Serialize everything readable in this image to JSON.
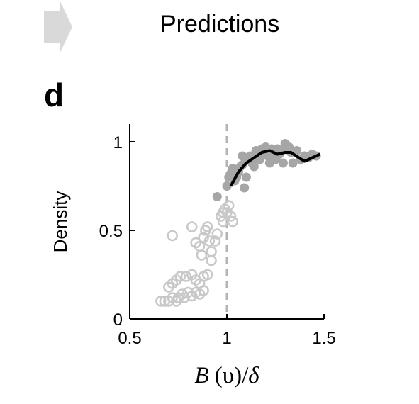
{
  "header": {
    "title": "Predictions",
    "arrow_icon": "right-arrow-icon"
  },
  "panel": {
    "label": "d"
  },
  "colors": {
    "open_marker": "#c8c8c8",
    "filled_marker": "#a6a6a6",
    "line": "#000000",
    "threshold": "#b3b3b3",
    "arrow": "#d9d9d9"
  },
  "chart_data": {
    "type": "scatter",
    "xlabel": {
      "italic": "B",
      "mid": " (υ)/",
      "end": "δ"
    },
    "ylabel": "Density",
    "xlim": [
      0.5,
      1.5
    ],
    "ylim": [
      0,
      1.08
    ],
    "xticks": [
      "0.5",
      "1",
      "1.5"
    ],
    "yticks": [
      "0",
      "0.5",
      "1"
    ],
    "threshold_x": 1,
    "series": [
      {
        "style": "open",
        "points": [
          [
            0.66,
            0.1
          ],
          [
            0.68,
            0.1
          ],
          [
            0.7,
            0.1
          ],
          [
            0.72,
            0.12
          ],
          [
            0.74,
            0.1
          ],
          [
            0.75,
            0.12
          ],
          [
            0.77,
            0.14
          ],
          [
            0.78,
            0.12
          ],
          [
            0.8,
            0.15
          ],
          [
            0.82,
            0.13
          ],
          [
            0.84,
            0.15
          ],
          [
            0.86,
            0.14
          ],
          [
            0.88,
            0.16
          ],
          [
            0.7,
            0.18
          ],
          [
            0.72,
            0.2
          ],
          [
            0.74,
            0.22
          ],
          [
            0.76,
            0.24
          ],
          [
            0.79,
            0.24
          ],
          [
            0.82,
            0.25
          ],
          [
            0.84,
            0.22
          ],
          [
            0.86,
            0.2
          ],
          [
            0.88,
            0.24
          ],
          [
            0.9,
            0.25
          ],
          [
            0.72,
            0.47
          ],
          [
            0.82,
            0.52
          ],
          [
            0.84,
            0.43
          ],
          [
            0.86,
            0.41
          ],
          [
            0.87,
            0.36
          ],
          [
            0.88,
            0.46
          ],
          [
            0.89,
            0.5
          ],
          [
            0.9,
            0.52
          ],
          [
            0.91,
            0.44
          ],
          [
            0.92,
            0.38
          ],
          [
            0.92,
            0.33
          ],
          [
            0.94,
            0.44
          ],
          [
            0.95,
            0.48
          ],
          [
            0.97,
            0.58
          ],
          [
            0.98,
            0.6
          ],
          [
            0.99,
            0.62
          ],
          [
            0.98,
            0.55
          ],
          [
            1.0,
            0.6
          ],
          [
            1.01,
            0.64
          ],
          [
            1.02,
            0.58
          ],
          [
            1.03,
            0.55
          ]
        ]
      },
      {
        "style": "filled",
        "points": [
          [
            0.95,
            0.69
          ],
          [
            1.0,
            0.75
          ],
          [
            1.01,
            0.8
          ],
          [
            1.02,
            0.82
          ],
          [
            1.03,
            0.85
          ],
          [
            1.04,
            0.78
          ],
          [
            1.05,
            0.8
          ],
          [
            1.06,
            0.83
          ],
          [
            1.07,
            0.86
          ],
          [
            1.08,
            0.87
          ],
          [
            1.09,
            0.74
          ],
          [
            1.1,
            0.8
          ],
          [
            1.11,
            0.9
          ],
          [
            1.12,
            0.92
          ],
          [
            1.13,
            0.88
          ],
          [
            1.14,
            0.86
          ],
          [
            1.15,
            0.95
          ],
          [
            1.16,
            0.94
          ],
          [
            1.17,
            0.9
          ],
          [
            1.18,
            0.96
          ],
          [
            1.19,
            0.93
          ],
          [
            1.2,
            0.97
          ],
          [
            1.21,
            0.92
          ],
          [
            1.22,
            0.88
          ],
          [
            1.23,
            0.96
          ],
          [
            1.24,
            0.93
          ],
          [
            1.25,
            0.9
          ],
          [
            1.26,
            0.96
          ],
          [
            1.27,
            0.93
          ],
          [
            1.28,
            0.95
          ],
          [
            1.29,
            0.88
          ],
          [
            1.3,
            0.99
          ],
          [
            1.31,
            0.96
          ],
          [
            1.32,
            0.97
          ],
          [
            1.33,
            0.94
          ],
          [
            1.34,
            0.88
          ],
          [
            1.36,
            0.95
          ],
          [
            1.38,
            0.9
          ],
          [
            1.4,
            0.92
          ],
          [
            1.42,
            0.91
          ],
          [
            1.44,
            0.93
          ],
          [
            1.46,
            0.92
          ],
          [
            1.08,
            0.92
          ]
        ]
      },
      {
        "style": "line",
        "points": [
          [
            1.02,
            0.75
          ],
          [
            1.06,
            0.83
          ],
          [
            1.1,
            0.88
          ],
          [
            1.14,
            0.91
          ],
          [
            1.18,
            0.94
          ],
          [
            1.22,
            0.95
          ],
          [
            1.26,
            0.93
          ],
          [
            1.3,
            0.94
          ],
          [
            1.33,
            0.94
          ],
          [
            1.37,
            0.91
          ],
          [
            1.4,
            0.89
          ],
          [
            1.44,
            0.91
          ],
          [
            1.48,
            0.93
          ]
        ]
      }
    ]
  }
}
